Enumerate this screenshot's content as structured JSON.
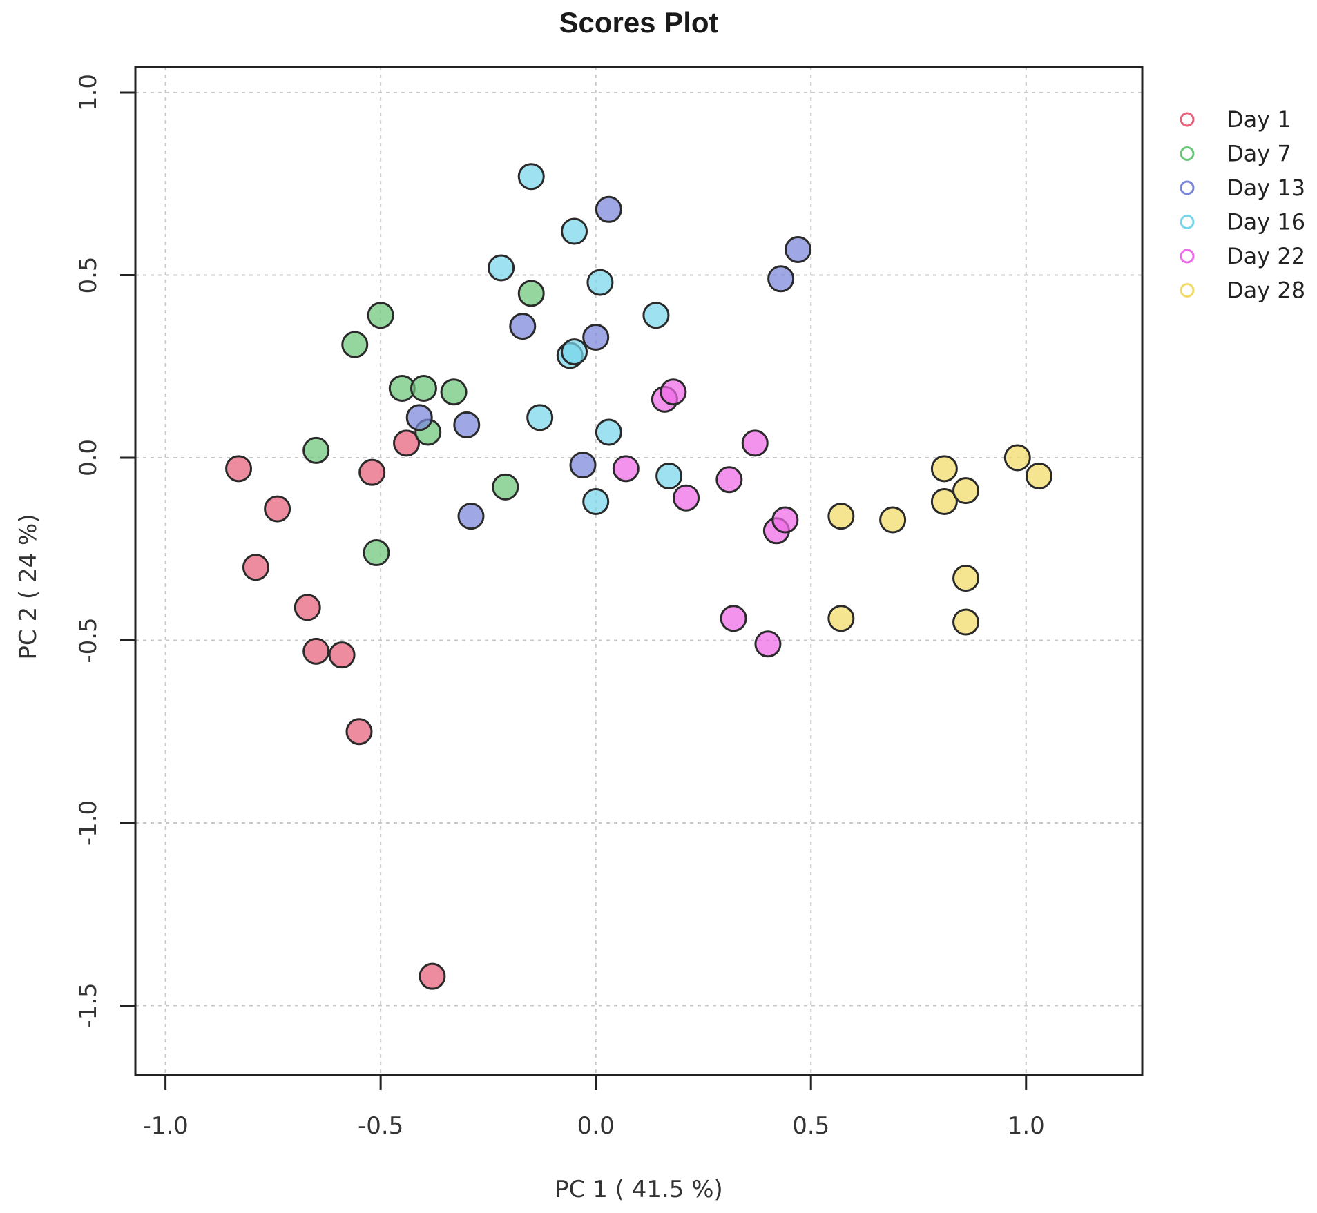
{
  "chart_data": {
    "type": "scatter",
    "title": "Scores Plot",
    "xlabel": "PC 1 ( 41.5 %)",
    "ylabel": "PC 2 ( 24 %)",
    "xlim": [
      -1.07,
      1.27
    ],
    "ylim": [
      -1.69,
      1.07
    ],
    "xticks": [
      -1.0,
      -0.5,
      0.0,
      0.5,
      1.0
    ],
    "xtick_labels": [
      "-1.0",
      "-0.5",
      "0.0",
      "0.5",
      "1.0"
    ],
    "yticks": [
      -1.5,
      -1.0,
      -0.5,
      0.0,
      0.5,
      1.0
    ],
    "ytick_labels": [
      "-1.5",
      "-1.0",
      "-0.5",
      "0.0",
      "0.5",
      "1.0"
    ],
    "grid": true,
    "legend_position": "right-top",
    "series": [
      {
        "name": "Day 1",
        "color": "#E8607A",
        "x": [
          -0.83,
          -0.74,
          -0.79,
          -0.67,
          -0.65,
          -0.59,
          -0.55,
          -0.52,
          -0.44,
          -0.38
        ],
        "y": [
          -0.03,
          -0.14,
          -0.3,
          -0.41,
          -0.53,
          -0.54,
          -0.75,
          -0.04,
          0.04,
          -1.42
        ]
      },
      {
        "name": "Day 7",
        "color": "#6CC67A",
        "x": [
          -0.65,
          -0.56,
          -0.5,
          -0.45,
          -0.4,
          -0.39,
          -0.33,
          -0.51,
          -0.21,
          -0.15
        ],
        "y": [
          0.02,
          0.31,
          0.39,
          0.19,
          0.19,
          0.07,
          0.18,
          -0.26,
          -0.08,
          0.45
        ]
      },
      {
        "name": "Day 13",
        "color": "#7A86DA",
        "x": [
          -0.41,
          -0.3,
          -0.29,
          -0.17,
          -0.03,
          0.0,
          0.03,
          0.43,
          0.47
        ],
        "y": [
          0.11,
          0.09,
          -0.16,
          0.36,
          -0.02,
          0.33,
          0.68,
          0.49,
          0.57
        ]
      },
      {
        "name": "Day 16",
        "color": "#79D6EA",
        "x": [
          -0.15,
          -0.05,
          -0.22,
          0.01,
          -0.06,
          -0.05,
          -0.13,
          0.03,
          0.0,
          0.14,
          0.17
        ],
        "y": [
          0.77,
          0.62,
          0.52,
          0.48,
          0.28,
          0.29,
          0.11,
          0.07,
          -0.12,
          0.39,
          -0.05
        ]
      },
      {
        "name": "Day 22",
        "color": "#EE6AE8",
        "x": [
          0.16,
          0.18,
          0.07,
          0.21,
          0.31,
          0.37,
          0.42,
          0.44,
          0.32,
          0.4
        ],
        "y": [
          0.16,
          0.18,
          -0.03,
          -0.11,
          -0.06,
          0.04,
          -0.2,
          -0.17,
          -0.44,
          -0.51
        ]
      },
      {
        "name": "Day 28",
        "color": "#F1DB67",
        "x": [
          0.57,
          0.69,
          0.57,
          0.81,
          0.81,
          0.86,
          0.86,
          0.86,
          0.98,
          1.03
        ],
        "y": [
          -0.16,
          -0.17,
          -0.44,
          -0.03,
          -0.12,
          -0.09,
          -0.33,
          -0.45,
          0.0,
          -0.05
        ]
      }
    ]
  }
}
